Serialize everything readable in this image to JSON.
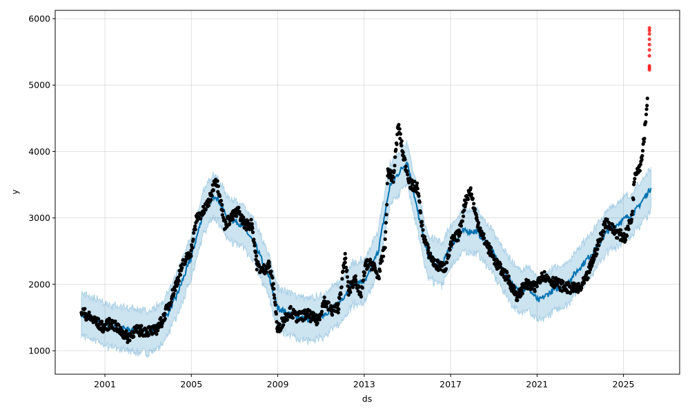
{
  "chart_data": {
    "type": "line",
    "title": "",
    "xlabel": "ds",
    "ylabel": "y",
    "xlim": [
      1998.7,
      2027.6
    ],
    "ylim": [
      647,
      6125
    ],
    "grid": true,
    "x_ticks": [
      2001,
      2005,
      2009,
      2013,
      2017,
      2021,
      2025
    ],
    "x_tick_labels": [
      "2001",
      "2005",
      "2009",
      "2013",
      "2017",
      "2021",
      "2025"
    ],
    "y_ticks": [
      1000,
      2000,
      3000,
      4000,
      5000,
      6000
    ],
    "y_tick_labels": [
      "1000",
      "2000",
      "3000",
      "4000",
      "5000",
      "6000"
    ],
    "series": [
      {
        "name": "actual",
        "kind": "scatter",
        "color": "#000000",
        "x": [
          1999.91,
          2000.3,
          2000.94,
          2001.26,
          2001.73,
          2002.05,
          2002.37,
          2003.01,
          2003.33,
          2003.65,
          2003.97,
          2004.29,
          2004.61,
          2004.99,
          2005.25,
          2005.57,
          2005.89,
          2006.11,
          2006.3,
          2006.53,
          2006.85,
          2007.17,
          2007.49,
          2007.81,
          2008.03,
          2008.28,
          2008.6,
          2008.83,
          2008.99,
          2009.24,
          2009.56,
          2009.88,
          2010.36,
          2010.84,
          2011.16,
          2011.48,
          2011.8,
          2012.12,
          2012.28,
          2012.6,
          2012.82,
          2013.08,
          2013.4,
          2013.65,
          2013.97,
          2014.1,
          2014.35,
          2014.58,
          2014.83,
          2015.15,
          2015.47,
          2015.7,
          2015.96,
          2016.27,
          2016.75,
          2017.07,
          2017.39,
          2017.71,
          2017.93,
          2018.19,
          2018.51,
          2018.83,
          2019.15,
          2019.63,
          2020.11,
          2020.42,
          2020.9,
          2021.22,
          2021.7,
          2022.34,
          2022.98,
          2023.3,
          2023.62,
          2023.94,
          2024.19,
          2024.58,
          2025.06,
          2025.38,
          2025.54,
          2025.79,
          2025.95,
          2026.11
        ],
        "y": [
          1600,
          1500,
          1350,
          1420,
          1300,
          1200,
          1300,
          1300,
          1300,
          1450,
          1700,
          2000,
          2300,
          2500,
          3000,
          3100,
          3300,
          3600,
          3400,
          2900,
          3000,
          3100,
          2900,
          2900,
          2300,
          2200,
          2300,
          1900,
          1300,
          1450,
          1600,
          1500,
          1550,
          1450,
          1750,
          1600,
          1650,
          2400,
          1900,
          2100,
          1800,
          2300,
          2300,
          2100,
          2600,
          3700,
          3600,
          4400,
          3900,
          3500,
          3450,
          2800,
          2500,
          2300,
          2250,
          2650,
          2750,
          3300,
          3400,
          3000,
          2700,
          2500,
          2300,
          2100,
          1800,
          2000,
          1950,
          2150,
          2050,
          1950,
          1930,
          2100,
          2400,
          2700,
          2950,
          2800,
          2700,
          3000,
          3700,
          3800,
          4200,
          4800
        ]
      },
      {
        "name": "future actual",
        "kind": "scatter",
        "color": "#ff0000",
        "x": [
          2026.2,
          2026.2,
          2026.2,
          2026.2,
          2026.2,
          2026.2,
          2026.2,
          2026.2,
          2026.2,
          2026.2
        ],
        "y": [
          5230,
          5260,
          5290,
          5440,
          5530,
          5610,
          5690,
          5770,
          5820,
          5860
        ]
      },
      {
        "name": "yhat",
        "kind": "line",
        "color": "#0072b2",
        "band_color": "#0072b2",
        "band_halfwidth": 320,
        "x": [
          1999.91,
          2000.94,
          2002.05,
          2003.01,
          2003.65,
          2004.29,
          2004.99,
          2005.57,
          2006.11,
          2006.69,
          2007.33,
          2007.96,
          2008.6,
          2008.99,
          2009.56,
          2010.52,
          2011.16,
          2011.8,
          2012.44,
          2013.08,
          2013.65,
          2014.2,
          2014.99,
          2015.47,
          2015.96,
          2016.59,
          2017.07,
          2017.55,
          2018.19,
          2018.83,
          2019.47,
          2020.11,
          2020.58,
          2021.06,
          2021.7,
          2022.34,
          2022.98,
          2023.62,
          2024.26,
          2024.9,
          2025.54,
          2026.27
        ],
        "y": [
          1550,
          1400,
          1320,
          1280,
          1400,
          1800,
          2400,
          3100,
          3350,
          3000,
          2900,
          2600,
          2100,
          1650,
          1550,
          1450,
          1550,
          1700,
          2000,
          2050,
          2500,
          3500,
          3850,
          3100,
          2400,
          2300,
          2600,
          2800,
          2800,
          2550,
          2200,
          1900,
          1950,
          1750,
          1900,
          2000,
          2250,
          2500,
          2800,
          2950,
          3100,
          3450
        ]
      }
    ]
  }
}
